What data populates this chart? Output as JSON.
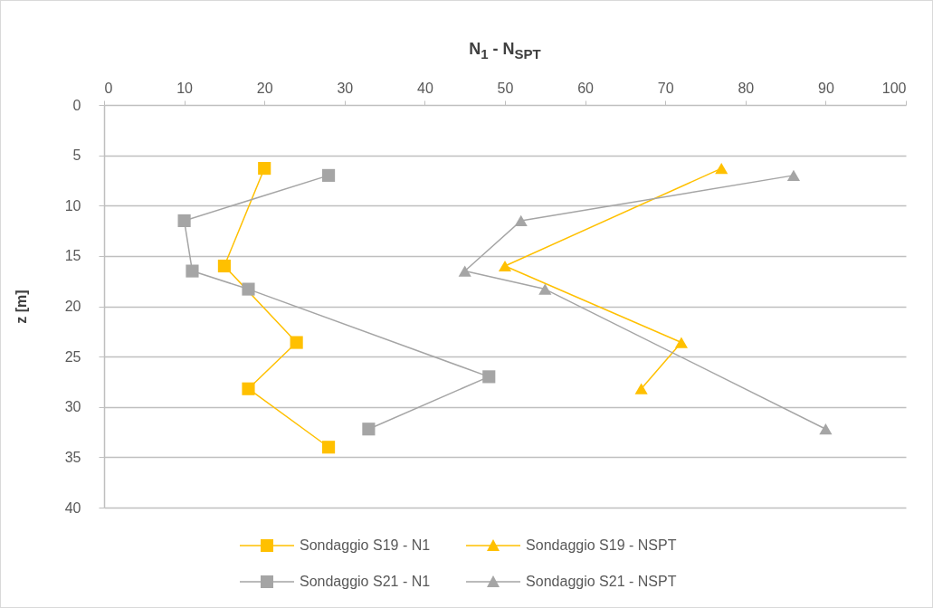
{
  "chart_data": {
    "type": "line",
    "xlabel": "N$_{1}$ - N$_{SPT}$",
    "ylabel": "z [m]",
    "xlim": [
      0,
      100
    ],
    "xticks": [
      0,
      10,
      20,
      30,
      40,
      50,
      60,
      70,
      80,
      90,
      100
    ],
    "ylim": [
      40,
      0
    ],
    "yticks": [
      0,
      5,
      10,
      15,
      20,
      25,
      30,
      35,
      40
    ],
    "grid": "y",
    "legend": "bottom",
    "line_style": "solid",
    "series": [
      {
        "name": "Sondaggio S19 - N1",
        "color": "#ffc000",
        "marker": "square",
        "x": [
          20,
          15,
          24,
          18,
          28
        ],
        "values": [
          6.3,
          16,
          23.6,
          28.2,
          34
        ]
      },
      {
        "name": "Sondaggio S19 - NSPT",
        "color": "#ffc000",
        "marker": "triangle",
        "x": [
          77,
          50,
          72,
          67
        ],
        "values": [
          6.3,
          16,
          23.6,
          28.2
        ]
      },
      {
        "name": "Sondaggio S21 - N1",
        "color": "#a5a5a5",
        "marker": "square",
        "x": [
          28,
          10,
          11,
          18,
          48,
          33
        ],
        "values": [
          7,
          11.5,
          16.5,
          18.3,
          27,
          32.2
        ]
      },
      {
        "name": "Sondaggio S21 - NSPT",
        "color": "#a5a5a5",
        "marker": "triangle",
        "x": [
          86,
          52,
          45,
          55,
          90
        ],
        "values": [
          7,
          11.5,
          16.5,
          18.3,
          32.2
        ]
      }
    ]
  }
}
